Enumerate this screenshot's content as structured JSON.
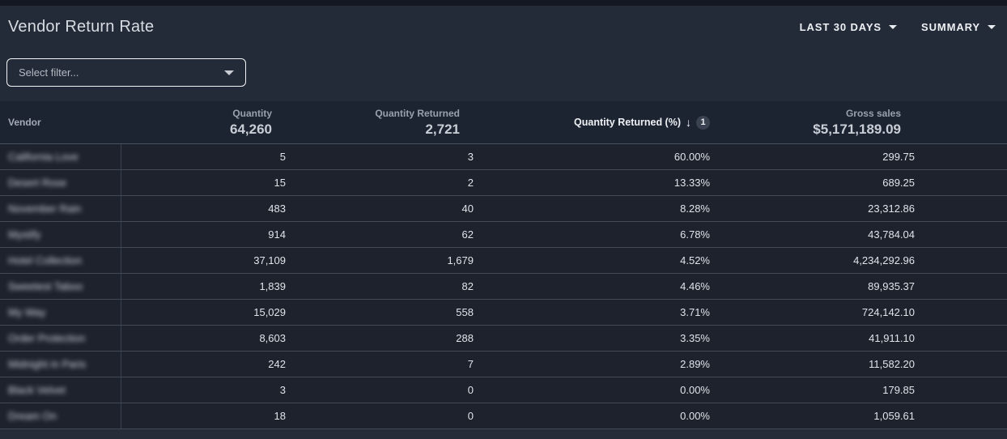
{
  "title_bar": {
    "title": "Vendor Return Rate",
    "date_range": "LAST 30 DAYS",
    "view_mode": "SUMMARY"
  },
  "filter": {
    "placeholder": "Select filter..."
  },
  "table": {
    "columns": {
      "vendor": {
        "label": "Vendor"
      },
      "quantity": {
        "label": "Quantity",
        "total": "64,260"
      },
      "quantity_returned": {
        "label": "Quantity Returned",
        "total": "2,721"
      },
      "quantity_returned_pct": {
        "label": "Quantity Returned (%)",
        "sort_arrow": "↓",
        "sort_order": "1",
        "sort_direction": "descending"
      },
      "gross_sales": {
        "label": "Gross sales",
        "total": "$5,171,189.09"
      }
    },
    "rows": [
      {
        "vendor": "California Love",
        "quantity": "5",
        "quantity_returned": "3",
        "quantity_returned_pct": "60.00%",
        "gross_sales": "299.75"
      },
      {
        "vendor": "Desert Rose",
        "quantity": "15",
        "quantity_returned": "2",
        "quantity_returned_pct": "13.33%",
        "gross_sales": "689.25"
      },
      {
        "vendor": "November Rain",
        "quantity": "483",
        "quantity_returned": "40",
        "quantity_returned_pct": "8.28%",
        "gross_sales": "23,312.86"
      },
      {
        "vendor": "Mystify",
        "quantity": "914",
        "quantity_returned": "62",
        "quantity_returned_pct": "6.78%",
        "gross_sales": "43,784.04"
      },
      {
        "vendor": "Hotel Collection",
        "quantity": "37,109",
        "quantity_returned": "1,679",
        "quantity_returned_pct": "4.52%",
        "gross_sales": "4,234,292.96"
      },
      {
        "vendor": "Sweetest Taboo",
        "quantity": "1,839",
        "quantity_returned": "82",
        "quantity_returned_pct": "4.46%",
        "gross_sales": "89,935.37"
      },
      {
        "vendor": "My Way",
        "quantity": "15,029",
        "quantity_returned": "558",
        "quantity_returned_pct": "3.71%",
        "gross_sales": "724,142.10"
      },
      {
        "vendor": "Order Protection",
        "quantity": "8,603",
        "quantity_returned": "288",
        "quantity_returned_pct": "3.35%",
        "gross_sales": "41,911.10"
      },
      {
        "vendor": "Midnight in Paris",
        "quantity": "242",
        "quantity_returned": "7",
        "quantity_returned_pct": "2.89%",
        "gross_sales": "11,582.20"
      },
      {
        "vendor": "Black Velvet",
        "quantity": "3",
        "quantity_returned": "0",
        "quantity_returned_pct": "0.00%",
        "gross_sales": "179.85"
      },
      {
        "vendor": "Dream On",
        "quantity": "18",
        "quantity_returned": "0",
        "quantity_returned_pct": "0.00%",
        "gross_sales": "1,059.61"
      }
    ]
  },
  "colors": {
    "page_background": "#242b38",
    "top_strip": "#141823",
    "table_header_background": "#1d2431",
    "row_background": "#1d222d",
    "divider": "#434a57",
    "text_primary": "#e0e4e9",
    "text_muted": "#99a1ad",
    "sort_badge_background": "#3a4150",
    "filter_border": "#f2f4f6"
  }
}
